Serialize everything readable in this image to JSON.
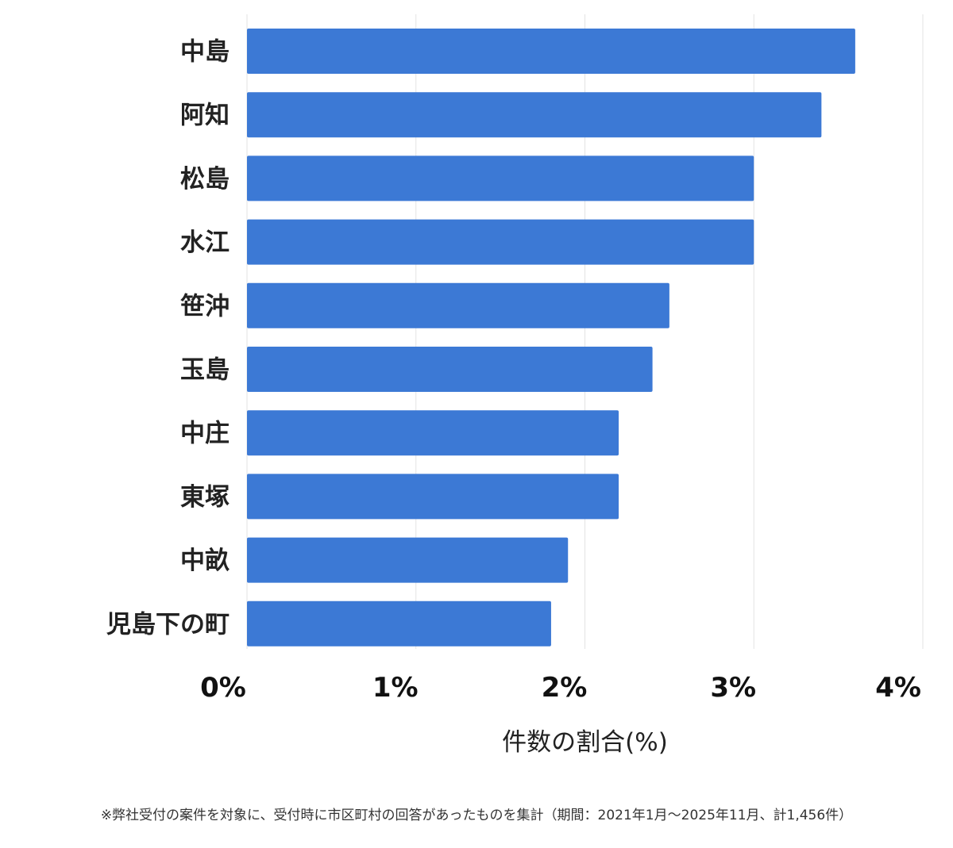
{
  "chart_data": {
    "type": "bar",
    "orientation": "horizontal",
    "categories": [
      "中島",
      "阿知",
      "松島",
      "水江",
      "笹沖",
      "玉島",
      "中庄",
      "東塚",
      "中畝",
      "児島下の町"
    ],
    "values": [
      3.6,
      3.4,
      3.0,
      3.0,
      2.5,
      2.4,
      2.2,
      2.2,
      1.9,
      1.8
    ],
    "xlim": [
      0,
      4
    ],
    "xticks": [
      0,
      1,
      2,
      3,
      4
    ],
    "xtick_labels": [
      "0%",
      "1%",
      "2%",
      "3%",
      "4%"
    ],
    "xlabel": "件数の割合(%)",
    "ylabel": "",
    "title": "",
    "grid": true,
    "legend": "none",
    "bar_color": "#3c79d5",
    "grid_color": "#e3e3e3"
  },
  "footnote": "※弊社受付の案件を対象に、受付時に市区町村の回答があったものを集計（期間：2021年1月〜2025年11月、計1,456件）"
}
